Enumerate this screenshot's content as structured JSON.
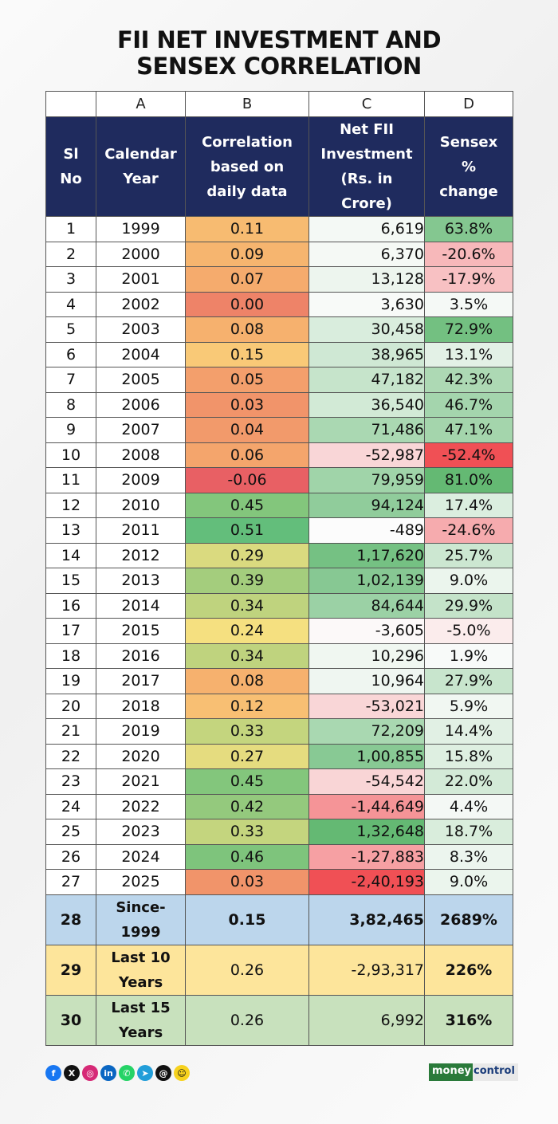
{
  "title_line1": "FII NET INVESTMENT AND",
  "title_line2": "SENSEX CORRELATION",
  "column_letters": [
    "A",
    "B",
    "C",
    "D"
  ],
  "headers": {
    "sl_line1": "Sl",
    "sl_line2": "No",
    "year_line1": "Calendar",
    "year_line2": "Year",
    "corr_line1": "Correlation",
    "corr_line2": "based on",
    "corr_line3": "daily data",
    "fii_line1": "Net FII",
    "fii_line2": "Investment",
    "fii_line3": "(Rs.  in",
    "fii_line4": "Crore)",
    "sx_line1": "Sensex",
    "sx_line2": "%",
    "sx_line3": "change"
  },
  "chart_data": {
    "type": "table",
    "rows": [
      {
        "sl": "1",
        "year": "1999",
        "corr": "0.11",
        "fii": "6,619",
        "sensex": "63.8%"
      },
      {
        "sl": "2",
        "year": "2000",
        "corr": "0.09",
        "fii": "6,370",
        "sensex": "-20.6%"
      },
      {
        "sl": "3",
        "year": "2001",
        "corr": "0.07",
        "fii": "13,128",
        "sensex": "-17.9%"
      },
      {
        "sl": "4",
        "year": "2002",
        "corr": "0.00",
        "fii": "3,630",
        "sensex": "3.5%"
      },
      {
        "sl": "5",
        "year": "2003",
        "corr": "0.08",
        "fii": "30,458",
        "sensex": "72.9%"
      },
      {
        "sl": "6",
        "year": "2004",
        "corr": "0.15",
        "fii": "38,965",
        "sensex": "13.1%"
      },
      {
        "sl": "7",
        "year": "2005",
        "corr": "0.05",
        "fii": "47,182",
        "sensex": "42.3%"
      },
      {
        "sl": "8",
        "year": "2006",
        "corr": "0.03",
        "fii": "36,540",
        "sensex": "46.7%"
      },
      {
        "sl": "9",
        "year": "2007",
        "corr": "0.04",
        "fii": "71,486",
        "sensex": "47.1%"
      },
      {
        "sl": "10",
        "year": "2008",
        "corr": "0.06",
        "fii": "-52,987",
        "sensex": "-52.4%"
      },
      {
        "sl": "11",
        "year": "2009",
        "corr": "-0.06",
        "fii": "79,959",
        "sensex": "81.0%"
      },
      {
        "sl": "12",
        "year": "2010",
        "corr": "0.45",
        "fii": "94,124",
        "sensex": "17.4%"
      },
      {
        "sl": "13",
        "year": "2011",
        "corr": "0.51",
        "fii": "-489",
        "sensex": "-24.6%"
      },
      {
        "sl": "14",
        "year": "2012",
        "corr": "0.29",
        "fii": "1,17,620",
        "sensex": "25.7%"
      },
      {
        "sl": "15",
        "year": "2013",
        "corr": "0.39",
        "fii": "1,02,139",
        "sensex": "9.0%"
      },
      {
        "sl": "16",
        "year": "2014",
        "corr": "0.34",
        "fii": "84,644",
        "sensex": "29.9%"
      },
      {
        "sl": "17",
        "year": "2015",
        "corr": "0.24",
        "fii": "-3,605",
        "sensex": "-5.0%"
      },
      {
        "sl": "18",
        "year": "2016",
        "corr": "0.34",
        "fii": "10,296",
        "sensex": "1.9%"
      },
      {
        "sl": "19",
        "year": "2017",
        "corr": "0.08",
        "fii": "10,964",
        "sensex": "27.9%"
      },
      {
        "sl": "20",
        "year": "2018",
        "corr": "0.12",
        "fii": "-53,021",
        "sensex": "5.9%"
      },
      {
        "sl": "21",
        "year": "2019",
        "corr": "0.33",
        "fii": "72,209",
        "sensex": "14.4%"
      },
      {
        "sl": "22",
        "year": "2020",
        "corr": "0.27",
        "fii": "1,00,855",
        "sensex": "15.8%"
      },
      {
        "sl": "23",
        "year": "2021",
        "corr": "0.45",
        "fii": "-54,542",
        "sensex": "22.0%"
      },
      {
        "sl": "24",
        "year": "2022",
        "corr": "0.42",
        "fii": "-1,44,649",
        "sensex": "4.4%"
      },
      {
        "sl": "25",
        "year": "2023",
        "corr": "0.33",
        "fii": "1,32,648",
        "sensex": "18.7%"
      },
      {
        "sl": "26",
        "year": "2024",
        "corr": "0.46",
        "fii": "-1,27,883",
        "sensex": "8.3%"
      },
      {
        "sl": "27",
        "year": "2025",
        "corr": "0.03",
        "fii": "-2,40,193",
        "sensex": "9.0%"
      }
    ],
    "summary": [
      {
        "sl": "28",
        "label_line1": "Since-",
        "label_line2": "1999",
        "corr": "0.15",
        "fii": "3,82,465",
        "sensex": "2689%"
      },
      {
        "sl": "29",
        "label_line1": "Last 10",
        "label_line2": "Years",
        "corr": "0.26",
        "fii": "-2,93,317",
        "sensex": "226%"
      },
      {
        "sl": "30",
        "label_line1": "Last 15",
        "label_line2": "Years",
        "corr": "0.26",
        "fii": "6,992",
        "sensex": "316%"
      }
    ]
  },
  "colors": {
    "header_bg": "#1f2b5e",
    "summary_since": "#bcd6ec",
    "summary_last10": "#fde59b",
    "summary_last15": "#c8e1bd"
  },
  "social_icons": [
    {
      "name": "facebook-icon",
      "glyph": "f",
      "color": "#1877f2"
    },
    {
      "name": "x-icon",
      "glyph": "X",
      "color": "#111111"
    },
    {
      "name": "instagram-icon",
      "glyph": "◎",
      "color": "#d62976"
    },
    {
      "name": "linkedin-icon",
      "glyph": "in",
      "color": "#0a66c2"
    },
    {
      "name": "whatsapp-icon",
      "glyph": "✆",
      "color": "#25d366"
    },
    {
      "name": "telegram-icon",
      "glyph": "➤",
      "color": "#229ed9"
    },
    {
      "name": "threads-icon",
      "glyph": "@",
      "color": "#111111"
    },
    {
      "name": "snapchat-icon",
      "glyph": "☺",
      "color": "#f7d21e"
    }
  ],
  "brand": {
    "part1": "money",
    "part2": "control"
  }
}
